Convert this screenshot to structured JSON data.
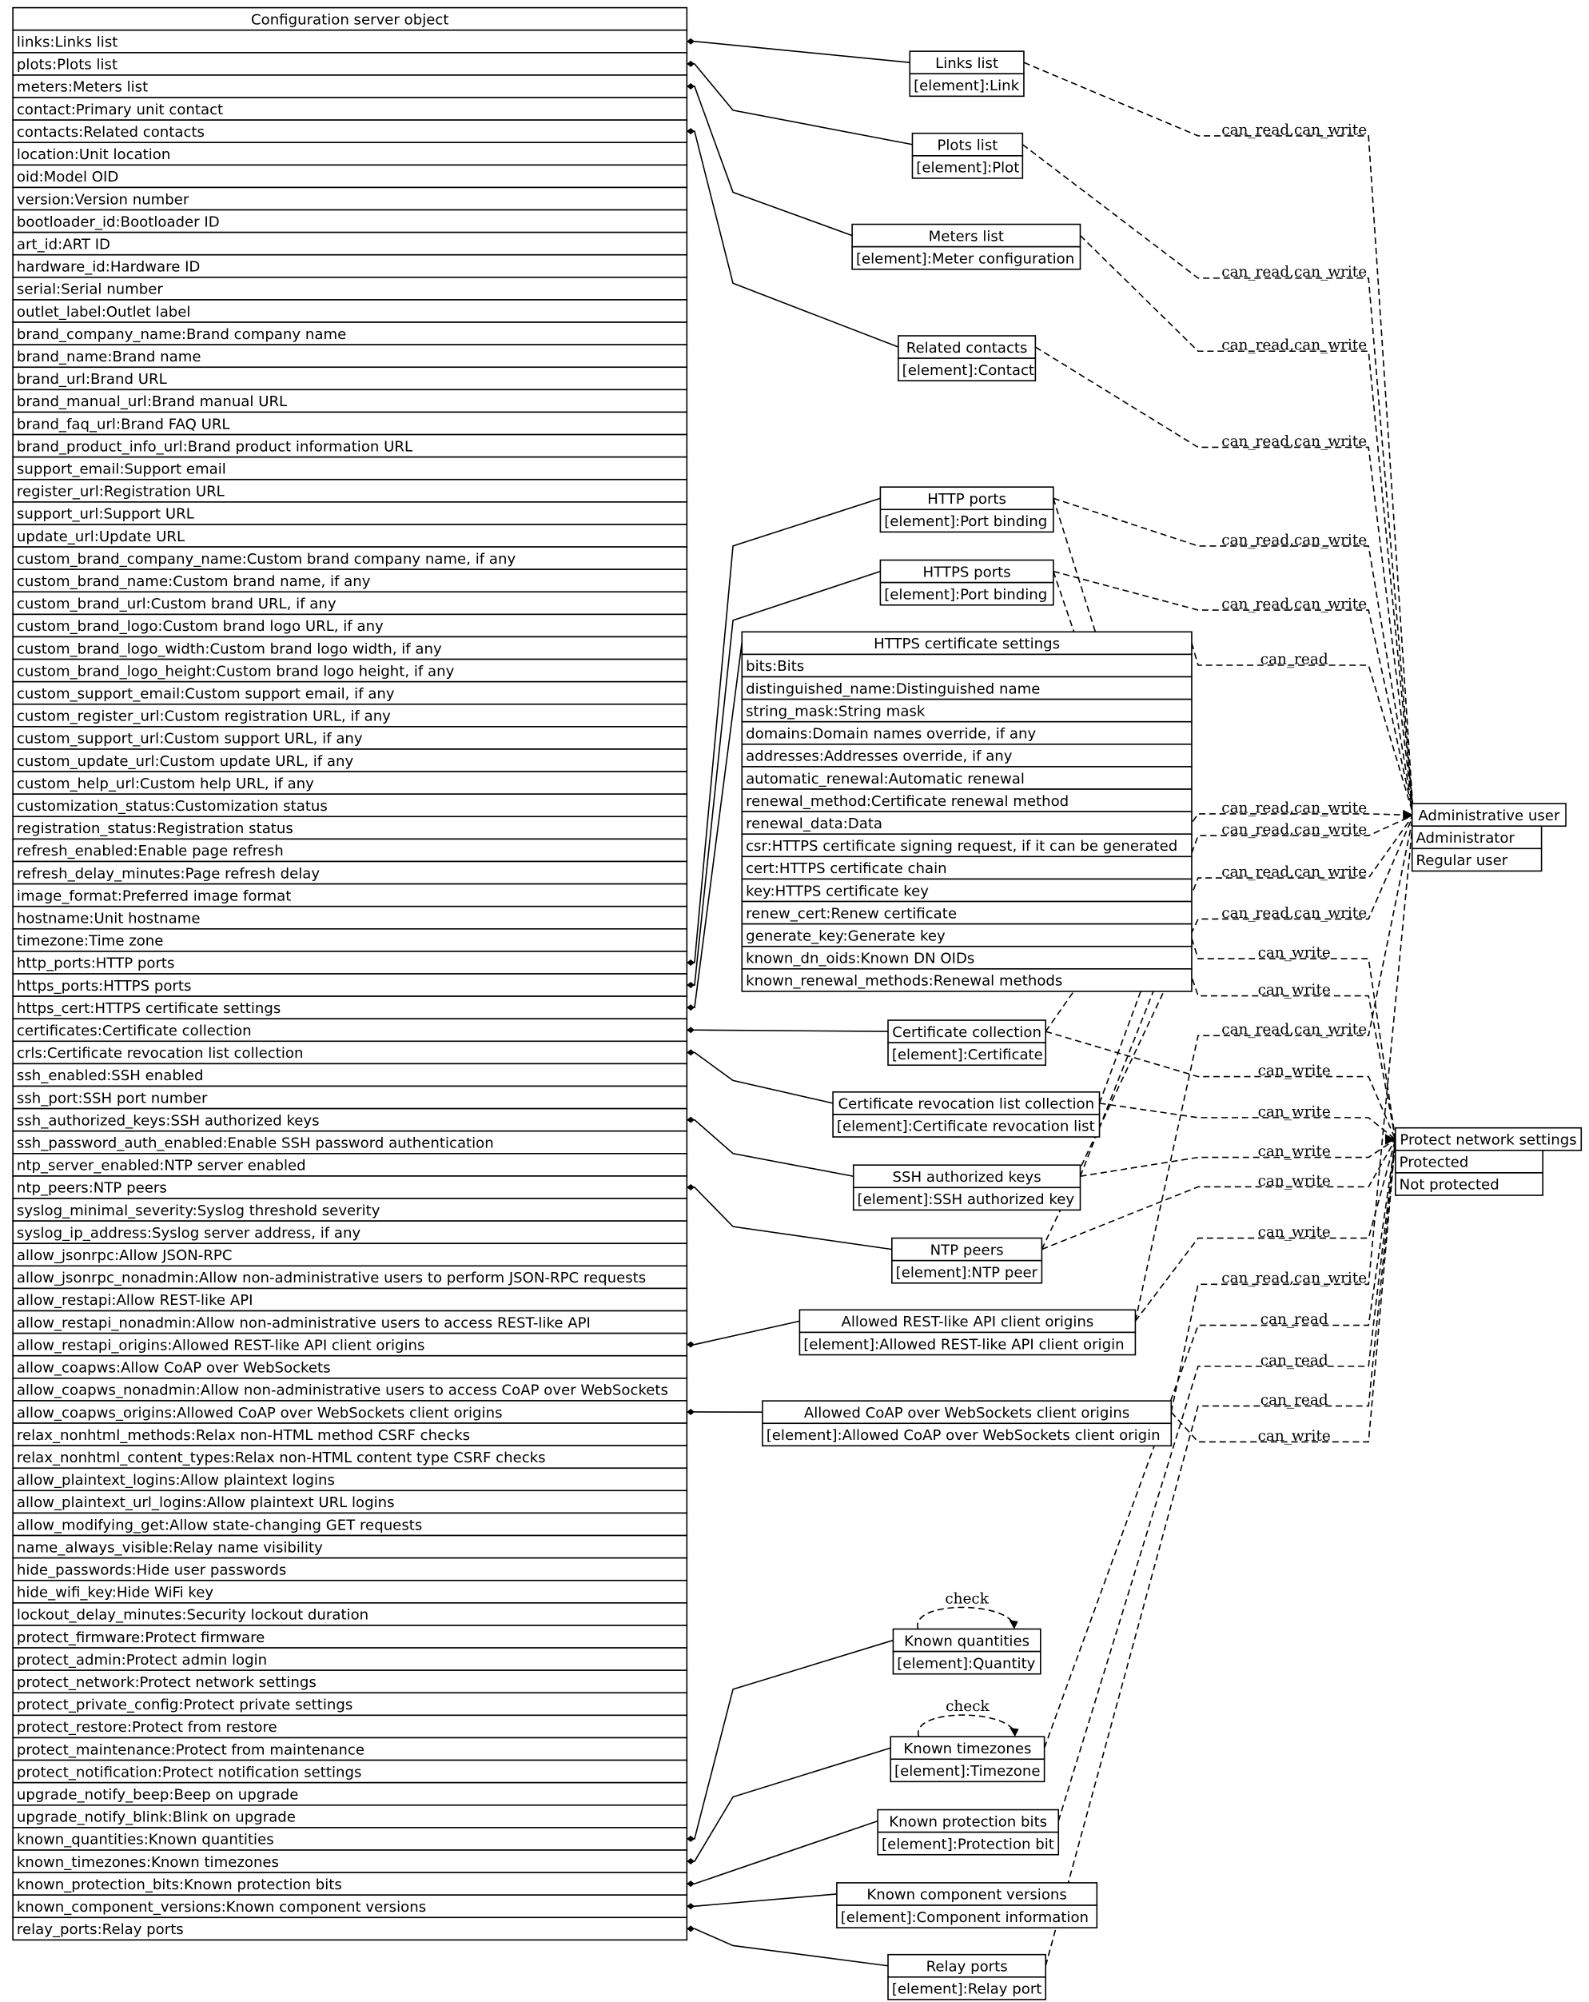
{
  "main_table": {
    "title": "Configuration server object",
    "rows": [
      "links:Links list",
      "plots:Plots list",
      "meters:Meters list",
      "contact:Primary unit contact",
      "contacts:Related contacts",
      "location:Unit location",
      "oid:Model OID",
      "version:Version number",
      "bootloader_id:Bootloader ID",
      "art_id:ART ID",
      "hardware_id:Hardware ID",
      "serial:Serial number",
      "outlet_label:Outlet label",
      "brand_company_name:Brand company name",
      "brand_name:Brand name",
      "brand_url:Brand URL",
      "brand_manual_url:Brand manual URL",
      "brand_faq_url:Brand FAQ URL",
      "brand_product_info_url:Brand product information URL",
      "support_email:Support email",
      "register_url:Registration URL",
      "support_url:Support URL",
      "update_url:Update URL",
      "custom_brand_company_name:Custom brand company name, if any",
      "custom_brand_name:Custom brand name, if any",
      "custom_brand_url:Custom brand URL, if any",
      "custom_brand_logo:Custom brand logo URL, if any",
      "custom_brand_logo_width:Custom brand logo width, if any",
      "custom_brand_logo_height:Custom brand logo height, if any",
      "custom_support_email:Custom support email, if any",
      "custom_register_url:Custom registration URL, if any",
      "custom_support_url:Custom support URL, if any",
      "custom_update_url:Custom update URL, if any",
      "custom_help_url:Custom help URL, if any",
      "customization_status:Customization status",
      "registration_status:Registration status",
      "refresh_enabled:Enable page refresh",
      "refresh_delay_minutes:Page refresh delay",
      "image_format:Preferred image format",
      "hostname:Unit hostname",
      "timezone:Time zone",
      "http_ports:HTTP ports",
      "https_ports:HTTPS ports",
      "https_cert:HTTPS certificate settings",
      "certificates:Certificate collection",
      "crls:Certificate revocation list collection",
      "ssh_enabled:SSH enabled",
      "ssh_port:SSH port number",
      "ssh_authorized_keys:SSH authorized keys",
      "ssh_password_auth_enabled:Enable SSH password authentication",
      "ntp_server_enabled:NTP server enabled",
      "ntp_peers:NTP peers",
      "syslog_minimal_severity:Syslog threshold severity",
      "syslog_ip_address:Syslog server address, if any",
      "allow_jsonrpc:Allow JSON-RPC",
      "allow_jsonrpc_nonadmin:Allow non-administrative users to perform JSON-RPC requests",
      "allow_restapi:Allow REST-like API",
      "allow_restapi_nonadmin:Allow non-administrative users to access REST-like API",
      "allow_restapi_origins:Allowed REST-like API client origins",
      "allow_coapws:Allow CoAP over WebSockets",
      "allow_coapws_nonadmin:Allow non-administrative users to access CoAP over WebSockets",
      "allow_coapws_origins:Allowed CoAP over WebSockets client origins",
      "relax_nonhtml_methods:Relax non-HTML method CSRF checks",
      "relax_nonhtml_content_types:Relax non-HTML content type CSRF checks",
      "allow_plaintext_logins:Allow plaintext logins",
      "allow_plaintext_url_logins:Allow plaintext URL logins",
      "allow_modifying_get:Allow state-changing GET requests",
      "name_always_visible:Relay name visibility",
      "hide_passwords:Hide user passwords",
      "hide_wifi_key:Hide WiFi key",
      "lockout_delay_minutes:Security lockout duration",
      "protect_firmware:Protect firmware",
      "protect_admin:Protect admin login",
      "protect_network:Protect network settings",
      "protect_private_config:Protect private settings",
      "protect_restore:Protect from restore",
      "protect_maintenance:Protect from maintenance",
      "protect_notification:Protect notification settings",
      "upgrade_notify_beep:Beep on upgrade",
      "upgrade_notify_blink:Blink on upgrade",
      "known_quantities:Known quantities",
      "known_timezones:Known timezones",
      "known_protection_bits:Known protection bits",
      "known_component_versions:Known component versions",
      "relay_ports:Relay ports"
    ]
  },
  "nodes": [
    {
      "id": "links",
      "title": "Links list",
      "rows": [
        "[element]:Link"
      ]
    },
    {
      "id": "plots",
      "title": "Plots list",
      "rows": [
        "[element]:Plot"
      ]
    },
    {
      "id": "meters",
      "title": "Meters list",
      "rows": [
        "[element]:Meter configuration"
      ]
    },
    {
      "id": "contacts",
      "title": "Related contacts",
      "rows": [
        "[element]:Contact"
      ]
    },
    {
      "id": "http",
      "title": "HTTP ports",
      "rows": [
        "[element]:Port binding"
      ]
    },
    {
      "id": "https",
      "title": "HTTPS ports",
      "rows": [
        "[element]:Port binding"
      ]
    },
    {
      "id": "cert",
      "title": "HTTPS certificate settings",
      "rows": [
        "bits:Bits",
        "distinguished_name:Distinguished name",
        "string_mask:String mask",
        "domains:Domain names override, if any",
        "addresses:Addresses override, if any",
        "automatic_renewal:Automatic renewal",
        "renewal_method:Certificate renewal method",
        "renewal_data:Data",
        "csr:HTTPS certificate signing request, if it can be generated",
        "cert:HTTPS certificate chain",
        "key:HTTPS certificate key",
        "renew_cert:Renew certificate",
        "generate_key:Generate key",
        "known_dn_oids:Known DN OIDs",
        "known_renewal_methods:Renewal methods"
      ]
    },
    {
      "id": "certs",
      "title": "Certificate collection",
      "rows": [
        "[element]:Certificate"
      ]
    },
    {
      "id": "crls",
      "title": "Certificate revocation list collection",
      "rows": [
        "[element]:Certificate revocation list"
      ]
    },
    {
      "id": "ssh",
      "title": "SSH authorized keys",
      "rows": [
        "[element]:SSH authorized key"
      ]
    },
    {
      "id": "ntp",
      "title": "NTP peers",
      "rows": [
        "[element]:NTP peer"
      ]
    },
    {
      "id": "rest",
      "title": "Allowed REST-like API client origins",
      "rows": [
        "[element]:Allowed REST-like API client origin"
      ]
    },
    {
      "id": "coap",
      "title": "Allowed CoAP over WebSockets client origins",
      "rows": [
        "[element]:Allowed CoAP over WebSockets client origin"
      ]
    },
    {
      "id": "quant",
      "title": "Known quantities",
      "rows": [
        "[element]:Quantity"
      ]
    },
    {
      "id": "tz",
      "title": "Known timezones",
      "rows": [
        "[element]:Timezone"
      ]
    },
    {
      "id": "bits",
      "title": "Known protection bits",
      "rows": [
        "[element]:Protection bit"
      ]
    },
    {
      "id": "comp",
      "title": "Known component versions",
      "rows": [
        "[element]:Component information"
      ]
    },
    {
      "id": "relay",
      "title": "Relay ports",
      "rows": [
        "[element]:Relay port"
      ]
    },
    {
      "id": "admin",
      "title": "Administrative user",
      "rows": [
        "Administrator",
        "Regular user"
      ]
    },
    {
      "id": "protect",
      "title": "Protect network settings",
      "rows": [
        "Protected",
        "Not protected"
      ]
    }
  ],
  "self_loops": [
    {
      "node": "quant",
      "label": "check"
    },
    {
      "node": "tz",
      "label": "check"
    }
  ],
  "edges": [
    {
      "from": "links",
      "to": "admin",
      "label": "can_read,can_write"
    },
    {
      "from": "plots",
      "to": "admin",
      "label": "can_read,can_write"
    },
    {
      "from": "meters",
      "to": "admin",
      "label": "can_read,can_write"
    },
    {
      "from": "contacts",
      "to": "admin",
      "label": "can_read,can_write"
    },
    {
      "from": "http",
      "to": "admin",
      "label": "can_read,can_write"
    },
    {
      "from": "https",
      "to": "admin",
      "label": "can_read,can_write"
    },
    {
      "from": "cert",
      "to": "admin",
      "label": "can_read"
    },
    {
      "from": "certs",
      "to": "admin",
      "label": "can_read,can_write"
    },
    {
      "from": "crls",
      "to": "admin",
      "label": "can_read,can_write"
    },
    {
      "from": "ssh",
      "to": "admin",
      "label": "can_read,can_write"
    },
    {
      "from": "ntp",
      "to": "admin",
      "label": "can_read,can_write"
    },
    {
      "from": "http",
      "to": "protect",
      "label": "can_write"
    },
    {
      "from": "https",
      "to": "protect",
      "label": "can_write"
    },
    {
      "from": "rest",
      "to": "admin",
      "label": "can_read,can_write"
    },
    {
      "from": "certs",
      "to": "protect",
      "label": "can_write"
    },
    {
      "from": "crls",
      "to": "protect",
      "label": "can_write"
    },
    {
      "from": "ssh",
      "to": "protect",
      "label": "can_write"
    },
    {
      "from": "ntp",
      "to": "protect",
      "label": "can_write"
    },
    {
      "from": "rest",
      "to": "protect",
      "label": "can_write"
    },
    {
      "from": "coap",
      "to": "admin",
      "label": "can_read,can_write"
    },
    {
      "from": "tz",
      "to": "protect",
      "label": "can_read"
    },
    {
      "from": "bits",
      "to": "protect",
      "label": "can_read"
    },
    {
      "from": "relay",
      "to": "protect",
      "label": "can_read"
    },
    {
      "from": "coap",
      "to": "protect",
      "label": "can_write"
    }
  ]
}
